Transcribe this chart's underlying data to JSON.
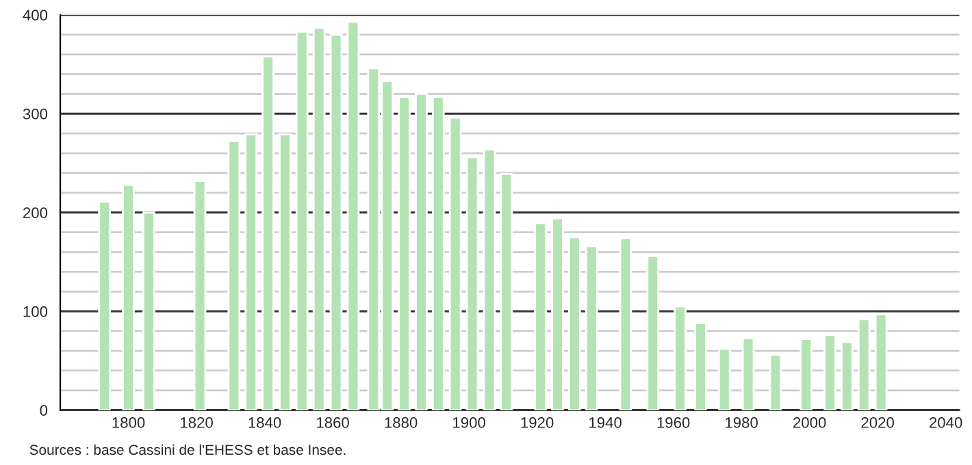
{
  "chart_data": {
    "type": "bar",
    "x": [
      1793,
      1800,
      1806,
      1821,
      1831,
      1836,
      1841,
      1846,
      1851,
      1856,
      1861,
      1866,
      1872,
      1876,
      1881,
      1886,
      1891,
      1896,
      1901,
      1906,
      1911,
      1921,
      1926,
      1931,
      1936,
      1946,
      1954,
      1962,
      1968,
      1975,
      1982,
      1990,
      1999,
      2006,
      2011,
      2016,
      2021
    ],
    "values": [
      211,
      228,
      200,
      232,
      272,
      279,
      358,
      279,
      383,
      387,
      380,
      393,
      346,
      333,
      317,
      320,
      317,
      296,
      256,
      264,
      239,
      189,
      194,
      175,
      166,
      174,
      156,
      105,
      88,
      62,
      73,
      56,
      72,
      76,
      69,
      92,
      97
    ],
    "color": "#b3e3b3",
    "xlim": [
      1780,
      2044
    ],
    "xticks": [
      1800,
      1820,
      1840,
      1860,
      1880,
      1900,
      1920,
      1940,
      1960,
      1980,
      2000,
      2020,
      2040
    ],
    "ylim": [
      0,
      400
    ],
    "yticks": [
      0,
      {
        "value": 20,
        "label": null
      },
      {
        "value": 40,
        "label": null
      },
      {
        "value": 60,
        "label": null
      },
      {
        "value": 80,
        "label": null
      },
      100,
      {
        "value": 120,
        "label": null
      },
      {
        "value": 140,
        "label": null
      },
      {
        "value": 160,
        "label": null
      },
      {
        "value": 180,
        "label": null
      },
      200,
      {
        "value": 220,
        "label": null
      },
      {
        "value": 240,
        "label": null
      },
      {
        "value": 260,
        "label": null
      },
      {
        "value": 280,
        "label": null
      },
      300,
      {
        "value": 320,
        "label": null
      },
      {
        "value": 340,
        "label": null
      },
      {
        "value": 360,
        "label": null
      },
      {
        "value": 380,
        "label": null
      },
      400
    ],
    "grid": "y",
    "annotations": [
      "Sources : base Cassini de l'EHESS et base Insee."
    ]
  }
}
